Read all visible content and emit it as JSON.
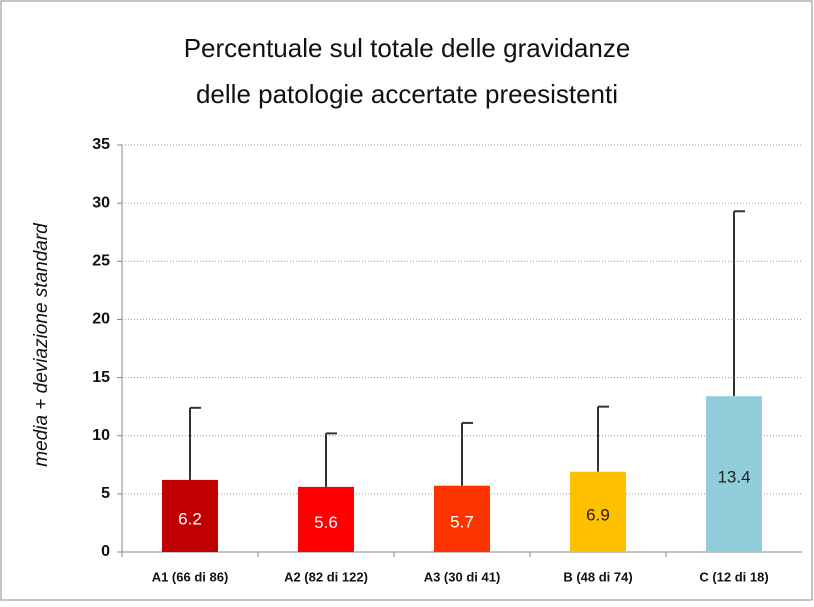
{
  "chart_data": {
    "type": "bar",
    "title": [
      "Percentuale sul totale delle gravidanze",
      "delle patologie accertate preesistenti"
    ],
    "y_label": "media + deviazione standard",
    "categories": [
      "A1 (66 di 86)",
      "A2 (82 di 122)",
      "A3 (30 di 41)",
      "B (48 di 74)",
      "C (12 di 18)"
    ],
    "values": [
      6.2,
      5.6,
      5.7,
      6.9,
      13.4
    ],
    "errors": [
      6.2,
      4.6,
      5.4,
      5.6,
      15.9
    ],
    "colors": [
      "#c00000",
      "#ff0000",
      "#ff3300",
      "#ffc000",
      "#92cddc"
    ],
    "label_colors": [
      "#ffffff",
      "#ffffff",
      "#ffffff",
      "#222222",
      "#222222"
    ],
    "ylim": [
      0,
      35
    ],
    "yticks": [
      0,
      5,
      10,
      15,
      20,
      25,
      30,
      35
    ],
    "grid": true
  }
}
